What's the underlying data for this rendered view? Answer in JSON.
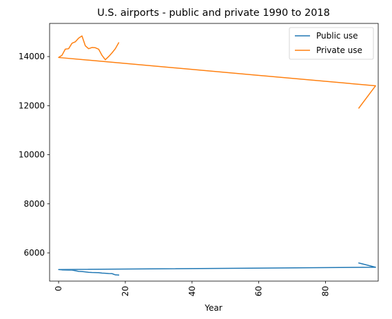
{
  "chart_data": {
    "type": "line",
    "title": "U.S. airports - public and private 1990 to 2018",
    "xlabel": "Year",
    "ylabel": "",
    "xlim": [
      -2.7,
      95.8
    ],
    "ylim": [
      4850,
      15350
    ],
    "xticks": [
      0,
      20,
      40,
      60,
      80
    ],
    "yticks": [
      6000,
      8000,
      10000,
      12000,
      14000
    ],
    "xtick_rotation": 90,
    "grid": false,
    "legend_position": "top-right",
    "series": [
      {
        "name": "Public use",
        "color": "#1f77b4",
        "x": [
          90,
          95,
          0,
          1,
          2,
          3,
          4,
          5,
          6,
          7,
          8,
          9,
          10,
          11,
          12,
          13,
          14,
          15,
          16,
          17,
          18
        ],
        "y": [
          5589,
          5415,
          5321,
          5308,
          5303,
          5300,
          5298,
          5275,
          5246,
          5238,
          5225,
          5208,
          5200,
          5198,
          5194,
          5175,
          5168,
          5160,
          5155,
          5105,
          5098
        ]
      },
      {
        "name": "Private use",
        "color": "#ff7f0e",
        "x": [
          90,
          95,
          0,
          1,
          2,
          3,
          4,
          5,
          6,
          7,
          8,
          9,
          10,
          11,
          12,
          13,
          14,
          15,
          16,
          17,
          18
        ],
        "y": [
          11901,
          12809,
          13962,
          14050,
          14300,
          14320,
          14540,
          14600,
          14750,
          14840,
          14440,
          14320,
          14370,
          14360,
          14300,
          14050,
          13870,
          14000,
          14150,
          14320,
          14560
        ]
      }
    ]
  }
}
